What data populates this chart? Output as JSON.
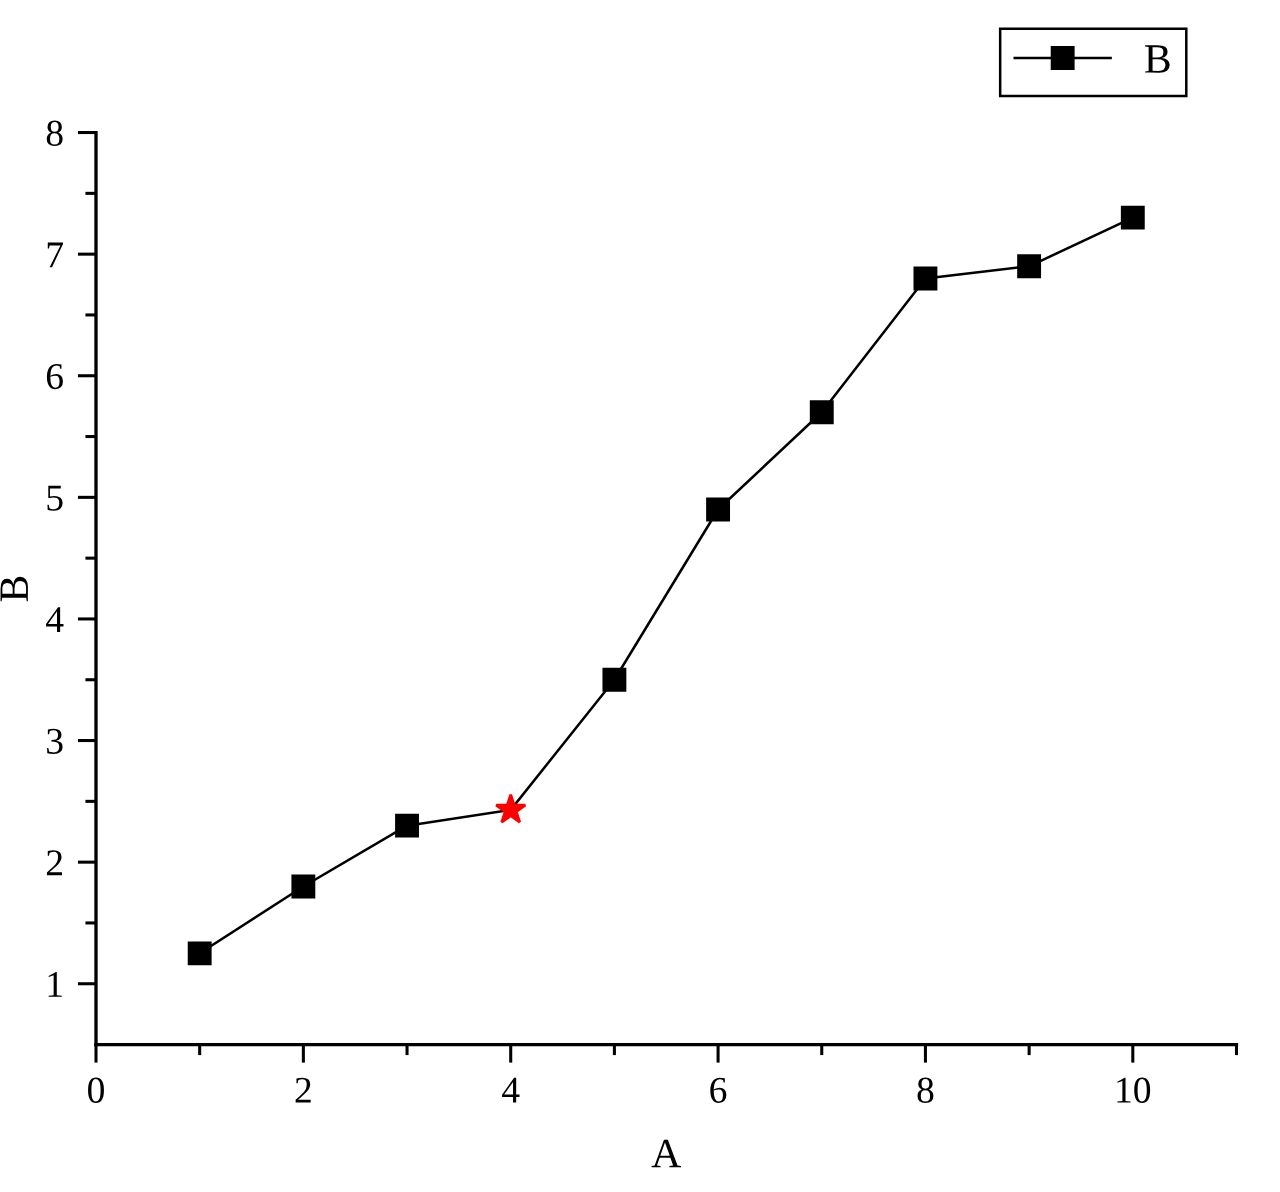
{
  "chart_data": {
    "type": "line",
    "xlabel": "A",
    "ylabel": "B",
    "xlim": [
      0,
      11
    ],
    "ylim": [
      0.5,
      8
    ],
    "xticks": [
      0,
      {
        "value": 1,
        "label": null
      },
      2,
      {
        "value": 3,
        "label": null
      },
      4,
      {
        "value": 5,
        "label": null
      },
      6,
      {
        "value": 7,
        "label": null
      },
      8,
      {
        "value": 9,
        "label": null
      },
      10,
      {
        "value": 11,
        "label": null
      }
    ],
    "yticks": [
      1,
      {
        "value": 1.5,
        "label": null
      },
      2,
      {
        "value": 2.5,
        "label": null
      },
      3,
      {
        "value": 3.5,
        "label": null
      },
      4,
      {
        "value": 4.5,
        "label": null
      },
      5,
      {
        "value": 5.5,
        "label": null
      },
      6,
      {
        "value": 6.5,
        "label": null
      },
      7,
      {
        "value": 7.5,
        "label": null
      },
      8
    ],
    "grid": false,
    "legend": "top right",
    "series": [
      {
        "name": "B",
        "color": "#000000",
        "marker": "square",
        "x": [
          1,
          2,
          3,
          4,
          5,
          6,
          7,
          8,
          9,
          10
        ],
        "values": [
          1.25,
          1.8,
          2.3,
          2.43,
          3.5,
          4.9,
          5.7,
          6.8,
          6.9,
          7.3
        ]
      },
      {
        "type": "scatter",
        "color": "#ff0000",
        "marker": "star",
        "x": [
          4
        ],
        "values": [
          2.43
        ]
      }
    ]
  }
}
